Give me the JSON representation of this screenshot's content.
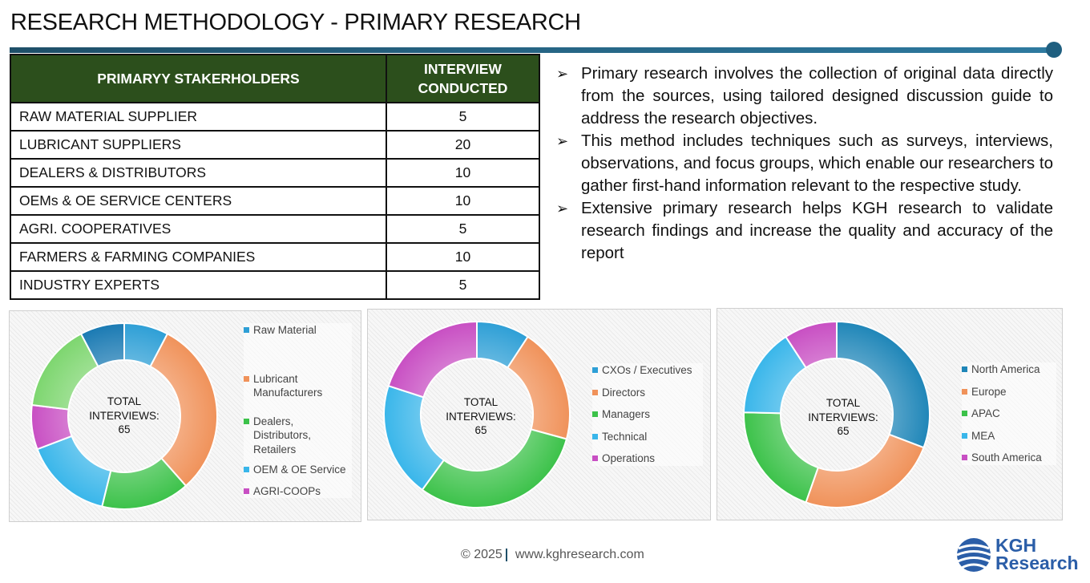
{
  "title": "RESEARCH METHODOLOGY - PRIMARY RESEARCH",
  "table": {
    "headers": [
      "PRIMARYY STAKERHOLDERS",
      "INTERVIEW CONDUCTED"
    ],
    "rows": [
      {
        "name": "RAW MATERIAL SUPPLIER",
        "count": "5"
      },
      {
        "name": "LUBRICANT SUPPLIERS",
        "count": "20"
      },
      {
        "name": "DEALERS & DISTRIBUTORS",
        "count": "10"
      },
      {
        "name": "OEMs & OE SERVICE CENTERS",
        "count": "10"
      },
      {
        "name": "AGRI. COOPERATIVES",
        "count": "5"
      },
      {
        "name": "FARMERS & FARMING COMPANIES",
        "count": "10"
      },
      {
        "name": "INDUSTRY EXPERTS",
        "count": "5"
      }
    ]
  },
  "bullets": [
    "Primary research involves the collection of original data directly from the sources, using tailored designed discussion guide to address the research objectives.",
    "This method includes techniques such as surveys, interviews, observations, and focus groups, which enable our researchers to gather first-hand information relevant to the respective study.",
    "Extensive primary research helps KGH research to validate research findings and increase the quality and accuracy of the report"
  ],
  "chart_data": [
    {
      "type": "pie",
      "center_label": [
        "TOTAL",
        "INTERVIEWS:",
        "65"
      ],
      "categories": [
        "Raw Material",
        "Lubricant Manufacturers",
        "Dealers, Distributors, Retailers",
        "OEM & OE Service",
        "AGRI-COOPs",
        "",
        ""
      ],
      "values": [
        5,
        20,
        10,
        10,
        5,
        10,
        5
      ],
      "colors": [
        "#2e9fd6",
        "#f0925a",
        "#3cc24a",
        "#39b6ea",
        "#c84fc3",
        "#7dd66f",
        "#1a7ab3"
      ],
      "legend": [
        "Raw Material",
        "Lubricant Manufacturers",
        "Dealers, Distributors, Retailers",
        "OEM & OE Service",
        "AGRI-COOPs"
      ],
      "legend_position": "right"
    },
    {
      "type": "pie",
      "center_label": [
        "TOTAL",
        "INTERVIEWS:",
        "65"
      ],
      "categories": [
        "CXOs / Executives",
        "Directors",
        "Managers",
        "Technical",
        "Operations"
      ],
      "values": [
        6,
        13,
        20,
        13,
        13
      ],
      "colors": [
        "#2e9fd6",
        "#f0925a",
        "#3cc24a",
        "#39b6ea",
        "#c84fc3"
      ],
      "legend": [
        "CXOs / Executives",
        "Directors",
        "Managers",
        "Technical",
        "Operations"
      ],
      "legend_position": "right"
    },
    {
      "type": "pie",
      "center_label": [
        "TOTAL",
        "INTERVIEWS:",
        "65"
      ],
      "categories": [
        "North America",
        "Europe",
        "APAC",
        "MEA",
        "South America"
      ],
      "values": [
        20,
        16,
        13,
        10,
        6
      ],
      "colors": [
        "#1f86b8",
        "#f0925a",
        "#3cc24a",
        "#39b6ea",
        "#c84fc3"
      ],
      "legend": [
        "North America",
        "Europe",
        "APAC",
        "MEA",
        "South America"
      ],
      "legend_position": "right"
    }
  ],
  "footer": {
    "copyright": "© 2025",
    "url": "www.kghresearch.com"
  },
  "logo": {
    "line1": "KGH",
    "line2": "Research"
  }
}
